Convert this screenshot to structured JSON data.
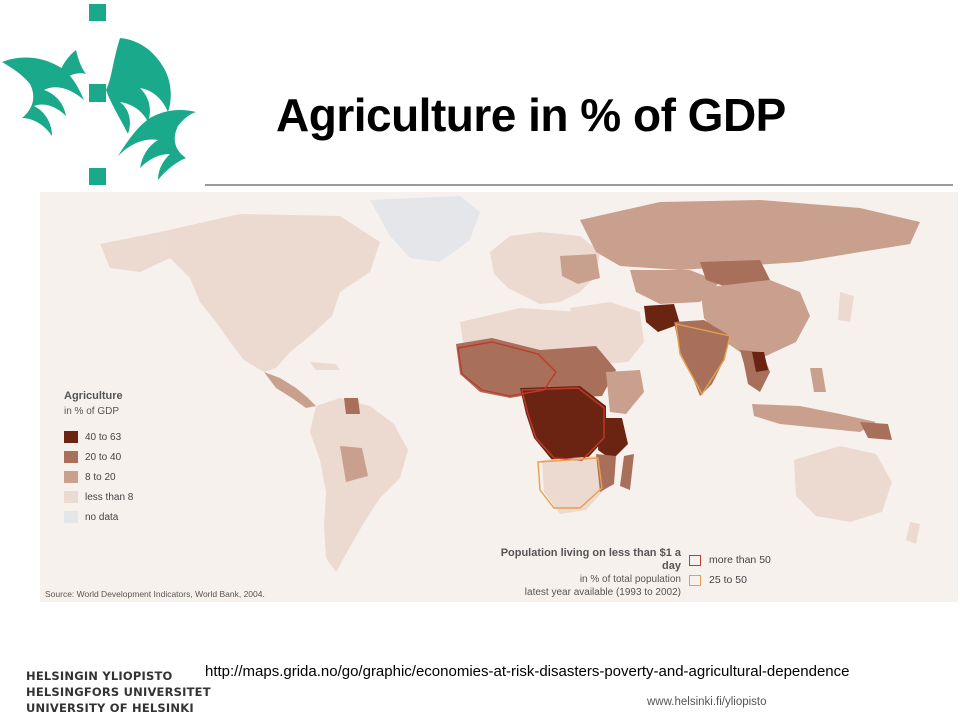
{
  "title": "Agriculture in % of GDP",
  "legend": {
    "title": "Agriculture",
    "subtitle": "in % of GDP",
    "items": [
      {
        "label": "40 to 63",
        "color": "#6b2412"
      },
      {
        "label": "20 to 40",
        "color": "#a8705a"
      },
      {
        "label": "8 to 20",
        "color": "#c9a08e"
      },
      {
        "label": "less than 8",
        "color": "#ecd9d0"
      },
      {
        "label": "no data",
        "color": "#e4e6ea"
      }
    ]
  },
  "poverty_legend": {
    "title": "Population living on less than $1 a day",
    "line2": "in % of total population",
    "line3": "latest year available (1993 to 2002)",
    "items": [
      {
        "label": "more than 50",
        "color": "#c0392b"
      },
      {
        "label": "25 to 50",
        "color": "#e8a04a"
      }
    ]
  },
  "source": "Source: World Development Indicators, World Bank, 2004.",
  "url": "http://maps.grida.no/go/graphic/economies-at-risk-disasters-poverty-and-agricultural-dependence",
  "footer_site": "www.helsinki.fi/yliopisto",
  "university_name": [
    "HELSINGIN YLIOPISTO",
    "HELSINGFORS UNIVERSITET",
    "UNIVERSITY OF HELSINKI"
  ],
  "colors": {
    "brand": "#1aa98a",
    "rule": "#9a9a9a"
  }
}
